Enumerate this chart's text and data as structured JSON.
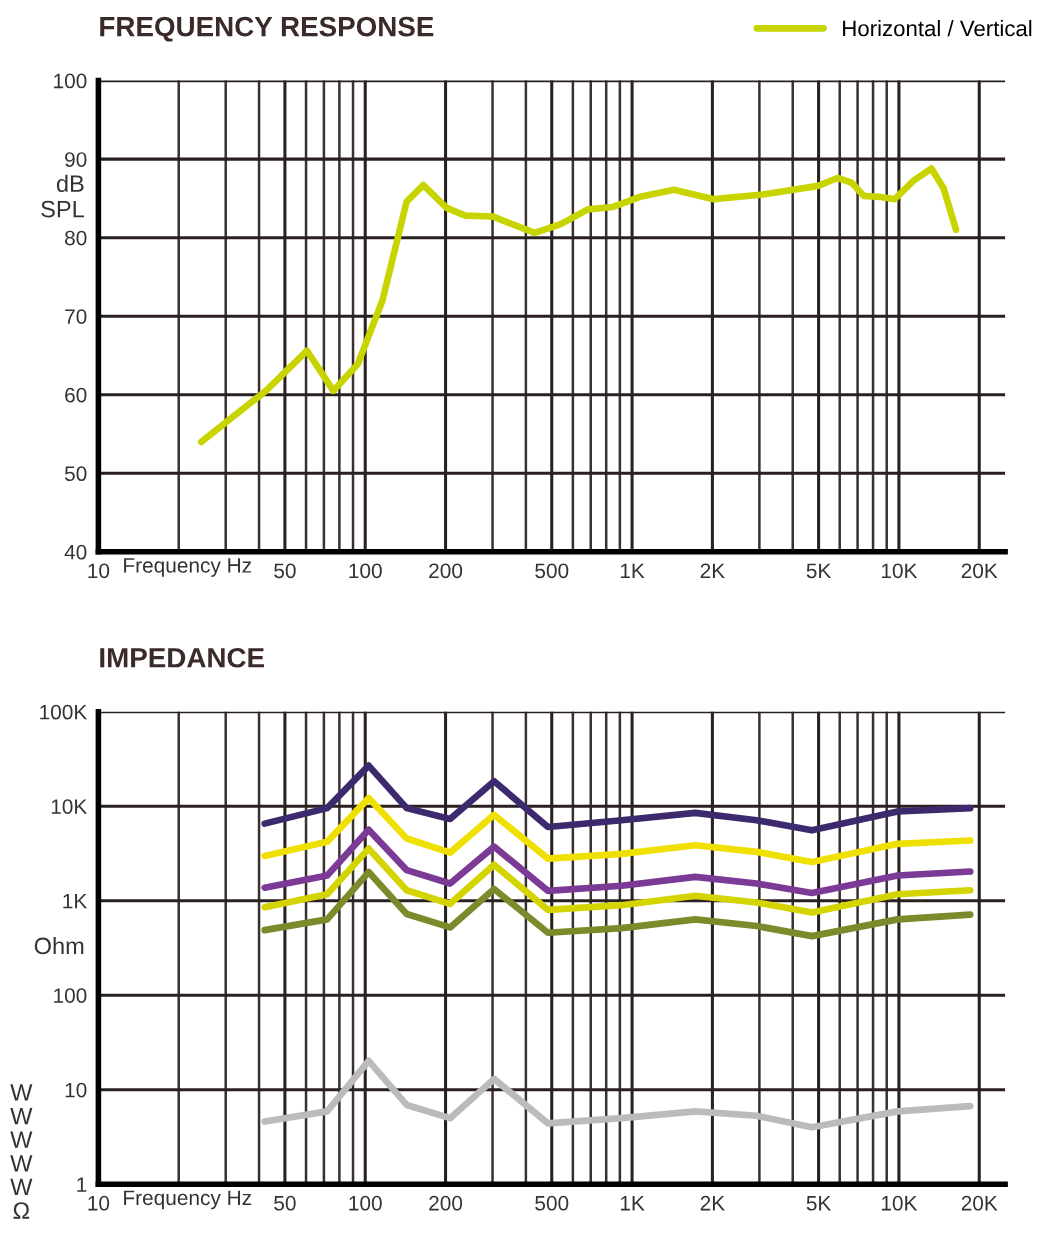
{
  "chart_data": [
    {
      "type": "line",
      "title": "FREQUENCY RESPONSE",
      "xlabel": "Frequency Hz",
      "ylabel": "dB\nSPL",
      "log": "x",
      "grid": true,
      "legend": "top right",
      "xlim": [
        10,
        25000
      ],
      "xticks": [
        10,
        50,
        100,
        200,
        500,
        {
          "value": 1000,
          "label": "1K"
        },
        {
          "value": 2000,
          "label": "2K"
        },
        {
          "value": 5000,
          "label": "5K"
        },
        {
          "value": 10000,
          "label": "10K"
        },
        {
          "value": 20000,
          "label": "20K"
        }
      ],
      "ylim": [
        40,
        100
      ],
      "yticks": [
        40,
        50,
        60,
        70,
        80,
        90,
        100
      ],
      "series": [
        {
          "name": "Horizontal / Vertical",
          "color": "#c8d400",
          "x": [
            24.3,
            42.4,
            60.5,
            76,
            93.8,
            116,
            143,
            165,
            202,
            237,
            300,
            431,
            538,
            683,
            843,
            1071,
            1435,
            2024,
            3090,
            4977,
            5890,
            6650,
            7400,
            8440,
            9640,
            11300,
            13240,
            14700,
            16370
          ],
          "values": [
            54.0,
            60.5,
            65.6,
            60.5,
            63.9,
            72,
            84.6,
            86.7,
            83.8,
            82.8,
            82.7,
            80.6,
            81.7,
            83.6,
            83.9,
            85.2,
            86.1,
            84.9,
            85.5,
            86.6,
            87.6,
            87.0,
            85.3,
            85.2,
            84.9,
            87.2,
            88.8,
            86.3,
            81.0
          ]
        }
      ]
    },
    {
      "type": "line",
      "title": "IMPEDANCE",
      "xlabel": "Frequency Hz",
      "ylabel": "Ohm",
      "log": "xy",
      "grid": true,
      "xlim": [
        10,
        25000
      ],
      "xticks": [
        10,
        50,
        100,
        200,
        500,
        {
          "value": 1000,
          "label": "1K"
        },
        {
          "value": 2000,
          "label": "2K"
        },
        {
          "value": 5000,
          "label": "5K"
        },
        {
          "value": 10000,
          "label": "10K"
        },
        {
          "value": 20000,
          "label": "20K"
        }
      ],
      "ylim": [
        1,
        100000
      ],
      "yticks": [
        1,
        10,
        100,
        {
          "value": 1000,
          "label": "1K"
        },
        {
          "value": 10000,
          "label": "10K"
        },
        {
          "value": 100000,
          "label": "100K"
        }
      ],
      "x": [
        42,
        72,
        103,
        143,
        208,
        304,
        484,
        914,
        1725,
        2930,
        4720,
        9890,
        18500
      ],
      "series": [
        {
          "color": "#3d2a6e",
          "values": [
            6550,
            9550,
            26900,
            9550,
            7340,
            18400,
            6030,
            7110,
            8510,
            7110,
            5560,
            8790,
            9550
          ]
        },
        {
          "color": "#f0e000",
          "values": [
            2980,
            4200,
            12200,
            4560,
            3230,
            8110,
            2790,
            3130,
            3870,
            3290,
            2570,
            4000,
            4340
          ]
        },
        {
          "color": "#7a3a96",
          "values": [
            1375,
            1850,
            5650,
            2110,
            1520,
            3740,
            1270,
            1440,
            1790,
            1520,
            1210,
            1850,
            2040
          ]
        },
        {
          "color": "#d4d400",
          "values": [
            855,
            1170,
            3560,
            1290,
            927,
            2400,
            800,
            897,
            1130,
            958,
            749,
            1170,
            1290
          ]
        },
        {
          "color": "#7b8a2a",
          "values": [
            489,
            635,
            2010,
            724,
            522,
            1330,
            458,
            513,
            635,
            540,
            422,
            635,
            713
          ]
        },
        {
          "color": "#bbbbbb",
          "values": [
            4.6,
            5.9,
            20.2,
            6.9,
            5.0,
            13.0,
            4.4,
            5.0,
            5.9,
            5.3,
            4.0,
            5.9,
            6.7
          ]
        }
      ],
      "annotations": [
        "W",
        "W",
        "W",
        "W",
        "W",
        "Ω"
      ]
    }
  ]
}
